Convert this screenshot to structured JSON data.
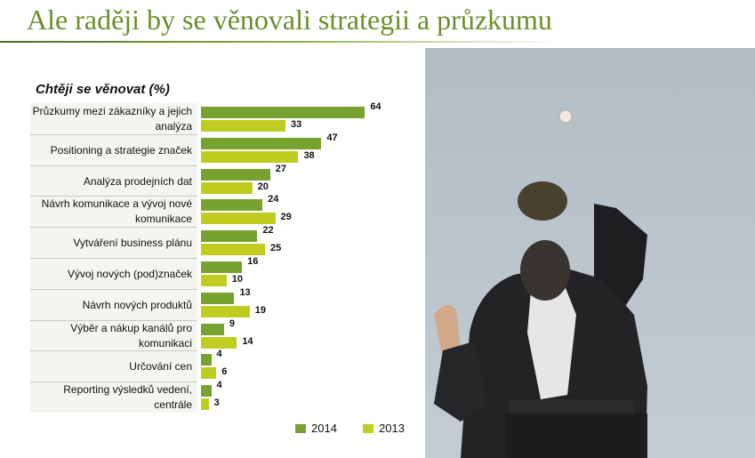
{
  "title": "Ale raději by se věnovali strategii a průzkumu",
  "colors": {
    "accent": "#6b8f2c",
    "series_2014": "#78a22f",
    "series_2013": "#c0cc1f"
  },
  "chart_data": {
    "type": "bar",
    "orientation": "horizontal",
    "title": "Chtěji se věnovat (%)",
    "categories": [
      "Průzkumy mezi zákazníky a jejich analýza",
      "Positioning a strategie značek",
      "Analýza prodejních dat",
      "Návrh komunikace a vývoj nové komunikace",
      "Vytváření business plánu",
      "Vývoj nových (pod)značek",
      "Návrh nových produktů",
      "Výběr a nákup kanálů pro komunikaci",
      "Určování cen",
      "Reporting výsledků vedení, centrále"
    ],
    "series": [
      {
        "name": "2014",
        "values": [
          64,
          47,
          27,
          24,
          22,
          16,
          13,
          9,
          4,
          4
        ]
      },
      {
        "name": "2013",
        "values": [
          33,
          38,
          20,
          29,
          25,
          10,
          19,
          14,
          6,
          3
        ]
      }
    ],
    "legend_position": "bottom-right",
    "grid": false
  },
  "photo": {
    "subject": "businessman-catching-baseball",
    "sky_color": "#b9c3cb"
  }
}
